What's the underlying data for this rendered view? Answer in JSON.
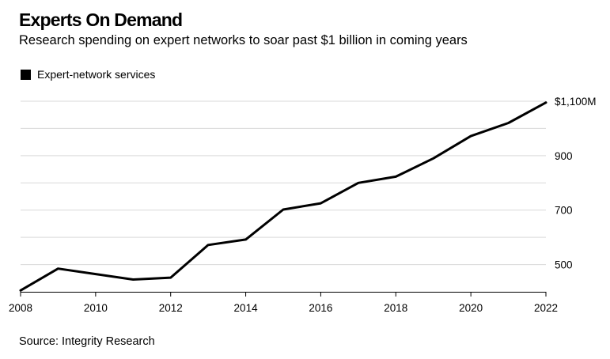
{
  "header": {
    "title": "Experts On Demand",
    "subtitle": "Research spending on expert networks to soar past $1 billion in coming years"
  },
  "footer": {
    "source": "Source: Integrity Research"
  },
  "colors": {
    "line": "#000000",
    "grid": "#d9d9d9",
    "axis": "#000000"
  },
  "chart_data": {
    "type": "line",
    "title": "Experts On Demand",
    "subtitle": "Research spending on expert networks to soar past $1 billion in coming years",
    "xlabel": "",
    "ylabel": "",
    "x": [
      2008,
      2009,
      2010,
      2011,
      2012,
      2013,
      2014,
      2015,
      2016,
      2017,
      2018,
      2019,
      2020,
      2021,
      2022
    ],
    "series": [
      {
        "name": "Expert-network services",
        "values": [
          405,
          485,
          465,
          445,
          452,
          572,
          592,
          702,
          725,
          800,
          823,
          890,
          972,
          1020,
          1095
        ]
      }
    ],
    "xticks": [
      "2008",
      "2010",
      "2012",
      "2014",
      "2016",
      "2018",
      "2020",
      "2022"
    ],
    "yticks": [
      {
        "value": 500,
        "label": "500"
      },
      {
        "value": 700,
        "label": "700"
      },
      {
        "value": 900,
        "label": "900"
      },
      {
        "value": 1100,
        "label": "$1,100M"
      }
    ],
    "ygrid": [
      500,
      600,
      700,
      800,
      900,
      1000,
      1100
    ],
    "xlim": [
      2008,
      2022
    ],
    "ylim": [
      400,
      1100
    ],
    "grid": true,
    "legend_position": "top-left",
    "source": "Source: Integrity Research"
  }
}
